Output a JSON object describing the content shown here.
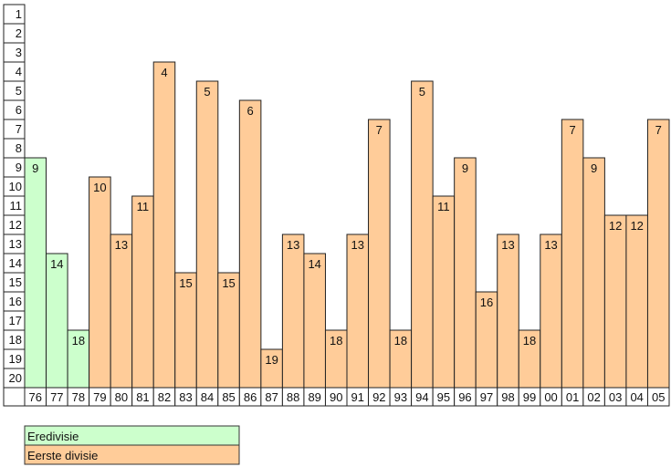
{
  "chart_data": {
    "type": "bar",
    "title": "",
    "xlabel": "",
    "ylabel": "",
    "y_inverted": true,
    "ylim": [
      1,
      20
    ],
    "y_ticks": [
      "1",
      "2",
      "3",
      "4",
      "5",
      "6",
      "7",
      "8",
      "9",
      "10",
      "11",
      "12",
      "13",
      "14",
      "15",
      "16",
      "17",
      "18",
      "19",
      "20"
    ],
    "categories": [
      "76",
      "77",
      "78",
      "79",
      "80",
      "81",
      "82",
      "83",
      "84",
      "85",
      "86",
      "87",
      "88",
      "89",
      "90",
      "91",
      "92",
      "93",
      "94",
      "95",
      "96",
      "97",
      "98",
      "99",
      "00",
      "01",
      "02",
      "03",
      "04",
      "05"
    ],
    "values": [
      9,
      14,
      18,
      10,
      13,
      11,
      4,
      15,
      5,
      15,
      6,
      19,
      13,
      14,
      18,
      13,
      7,
      18,
      5,
      11,
      9,
      16,
      13,
      18,
      13,
      7,
      9,
      12,
      12,
      7
    ],
    "division": [
      "Eredivisie",
      "Eredivisie",
      "Eredivisie",
      "Eerste divisie",
      "Eerste divisie",
      "Eerste divisie",
      "Eerste divisie",
      "Eerste divisie",
      "Eerste divisie",
      "Eerste divisie",
      "Eerste divisie",
      "Eerste divisie",
      "Eerste divisie",
      "Eerste divisie",
      "Eerste divisie",
      "Eerste divisie",
      "Eerste divisie",
      "Eerste divisie",
      "Eerste divisie",
      "Eerste divisie",
      "Eerste divisie",
      "Eerste divisie",
      "Eerste divisie",
      "Eerste divisie",
      "Eerste divisie",
      "Eerste divisie",
      "Eerste divisie",
      "Eerste divisie",
      "Eerste divisie",
      "Eerste divisie"
    ],
    "legend": [
      {
        "label": "Eredivisie",
        "color": "#ccffcc"
      },
      {
        "label": "Eerste divisie",
        "color": "#ffcc99"
      }
    ],
    "legend_position": "bottom-left",
    "grid": false
  }
}
